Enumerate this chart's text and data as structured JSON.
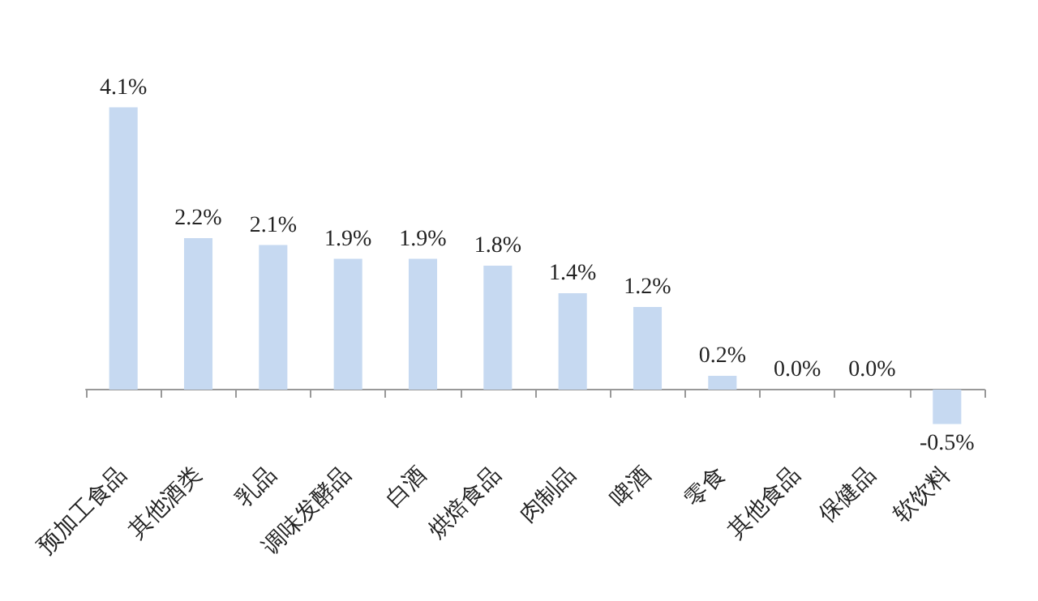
{
  "chart_data": {
    "type": "bar",
    "categories": [
      "预加工食品",
      "其他酒类",
      "乳品",
      "调味发酵品",
      "白酒",
      "烘焙食品",
      "肉制品",
      "啤酒",
      "零食",
      "其他食品",
      "保健品",
      "软饮料"
    ],
    "values": [
      4.1,
      2.2,
      2.1,
      1.9,
      1.9,
      1.8,
      1.4,
      1.2,
      0.2,
      0.0,
      0.0,
      -0.5
    ],
    "value_labels": [
      "4.1%",
      "2.2%",
      "2.1%",
      "1.9%",
      "1.9%",
      "1.8%",
      "1.4%",
      "1.2%",
      "0.2%",
      "0.0%",
      "0.0%",
      "-0.5%"
    ],
    "color": "#c6d9f1"
  }
}
